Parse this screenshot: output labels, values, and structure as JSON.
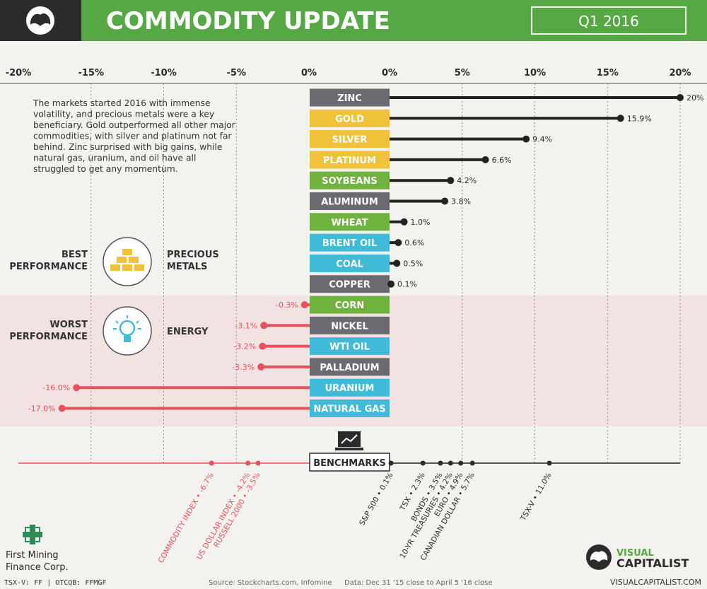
{
  "header": {
    "title": "COMMODITY UPDATE",
    "period": "Q1 2016"
  },
  "intro": "The markets started 2016 with immense volatility, and precious metals were a key beneficiary. Gold outperformed all other major commodities, with silver and platinum not far behind. Zinc surprised with big gains, while natural gas, uranium, and oil have all struggled to get any momentum.",
  "best": {
    "label_lines": [
      "BEST",
      "PERFORMANCE"
    ],
    "sector_lines": [
      "PRECIOUS",
      "METALS"
    ],
    "icon": "gold-bars-icon"
  },
  "worst": {
    "label_lines": [
      "WORST",
      "PERFORMANCE"
    ],
    "sector_lines": [
      "ENERGY"
    ],
    "icon": "lightbulb-icon"
  },
  "colors": {
    "header_green": "#55a843",
    "zinc": "#6b6a70",
    "gold": "#f0c23a",
    "green": "#6fb23d",
    "blue": "#3fbbd8",
    "gray": "#6b6a70",
    "positive_line": "#222222",
    "negative_line": "#e8505b"
  },
  "chart_data": {
    "type": "bar",
    "left_ticks": [
      "-20%",
      "-15%",
      "-10%",
      "-5%",
      "0%"
    ],
    "right_ticks": [
      "0%",
      "5%",
      "10%",
      "15%",
      "20%"
    ],
    "xlim_negative": [
      -20,
      0
    ],
    "xlim_positive": [
      0,
      20
    ],
    "items": [
      {
        "name": "ZINC",
        "value": 20,
        "label": "20%",
        "color": "gray"
      },
      {
        "name": "GOLD",
        "value": 15.9,
        "label": "15.9%",
        "color": "gold"
      },
      {
        "name": "SILVER",
        "value": 9.4,
        "label": "9.4%",
        "color": "gold"
      },
      {
        "name": "PLATINUM",
        "value": 6.6,
        "label": "6.6%",
        "color": "gold"
      },
      {
        "name": "SOYBEANS",
        "value": 4.2,
        "label": "4.2%",
        "color": "green"
      },
      {
        "name": "ALUMINUM",
        "value": 3.8,
        "label": "3.8%",
        "color": "gray"
      },
      {
        "name": "WHEAT",
        "value": 1.0,
        "label": "1.0%",
        "color": "green"
      },
      {
        "name": "BRENT OIL",
        "value": 0.6,
        "label": "0.6%",
        "color": "blue"
      },
      {
        "name": "COAL",
        "value": 0.5,
        "label": "0.5%",
        "color": "blue"
      },
      {
        "name": "COPPER",
        "value": 0.1,
        "label": "0.1%",
        "color": "gray"
      },
      {
        "name": "CORN",
        "value": -0.3,
        "label": "-0.3%",
        "color": "green"
      },
      {
        "name": "NICKEL",
        "value": -3.1,
        "label": "-3.1%",
        "color": "gray"
      },
      {
        "name": "WTI OIL",
        "value": -3.2,
        "label": "-3.2%",
        "color": "blue"
      },
      {
        "name": "PALLADIUM",
        "value": -3.3,
        "label": "-3.3%",
        "color": "gray"
      },
      {
        "name": "URANIUM",
        "value": -16.0,
        "label": "-16.0%",
        "color": "blue"
      },
      {
        "name": "NATURAL GAS",
        "value": -17.0,
        "label": "-17.0%",
        "color": "blue"
      }
    ],
    "benchmarks_label": "BENCHMARKS",
    "benchmarks": [
      {
        "label": "COMMODITY INDEX • -6.7%",
        "value": -6.7
      },
      {
        "label": "US DOLLAR INDEX • -4.2%",
        "value": -4.2
      },
      {
        "label": "RUSSELL 2000 • -3.5%",
        "value": -3.5
      },
      {
        "label": "S&P 500 • 0.1%",
        "value": 0.1
      },
      {
        "label": "TSX • 2.3%",
        "value": 2.3
      },
      {
        "label": "BONDS • 3.5%",
        "value": 3.5
      },
      {
        "label": "10-YR TREASURIES • 4.2%",
        "value": 4.2
      },
      {
        "label": "EURO • 4.9%",
        "value": 4.9
      },
      {
        "label": "CANADIAN DOLLAR • 5.7%",
        "value": 5.7
      },
      {
        "label": "TSX-V • 11.0%",
        "value": 11.0
      }
    ]
  },
  "footer": {
    "company_lines": [
      "First Mining",
      "Finance Corp."
    ],
    "tickers": "TSX-V: FF | OTCQB: FFMGF",
    "source": "Source: Stockcharts.com, Infomine",
    "data_note": "Data: Dec 31 '15 close to April 5 '16 close",
    "brand_lines": [
      "VISUAL",
      "CAPITALIST"
    ],
    "website": "VISUALCAPITALIST.COM"
  }
}
